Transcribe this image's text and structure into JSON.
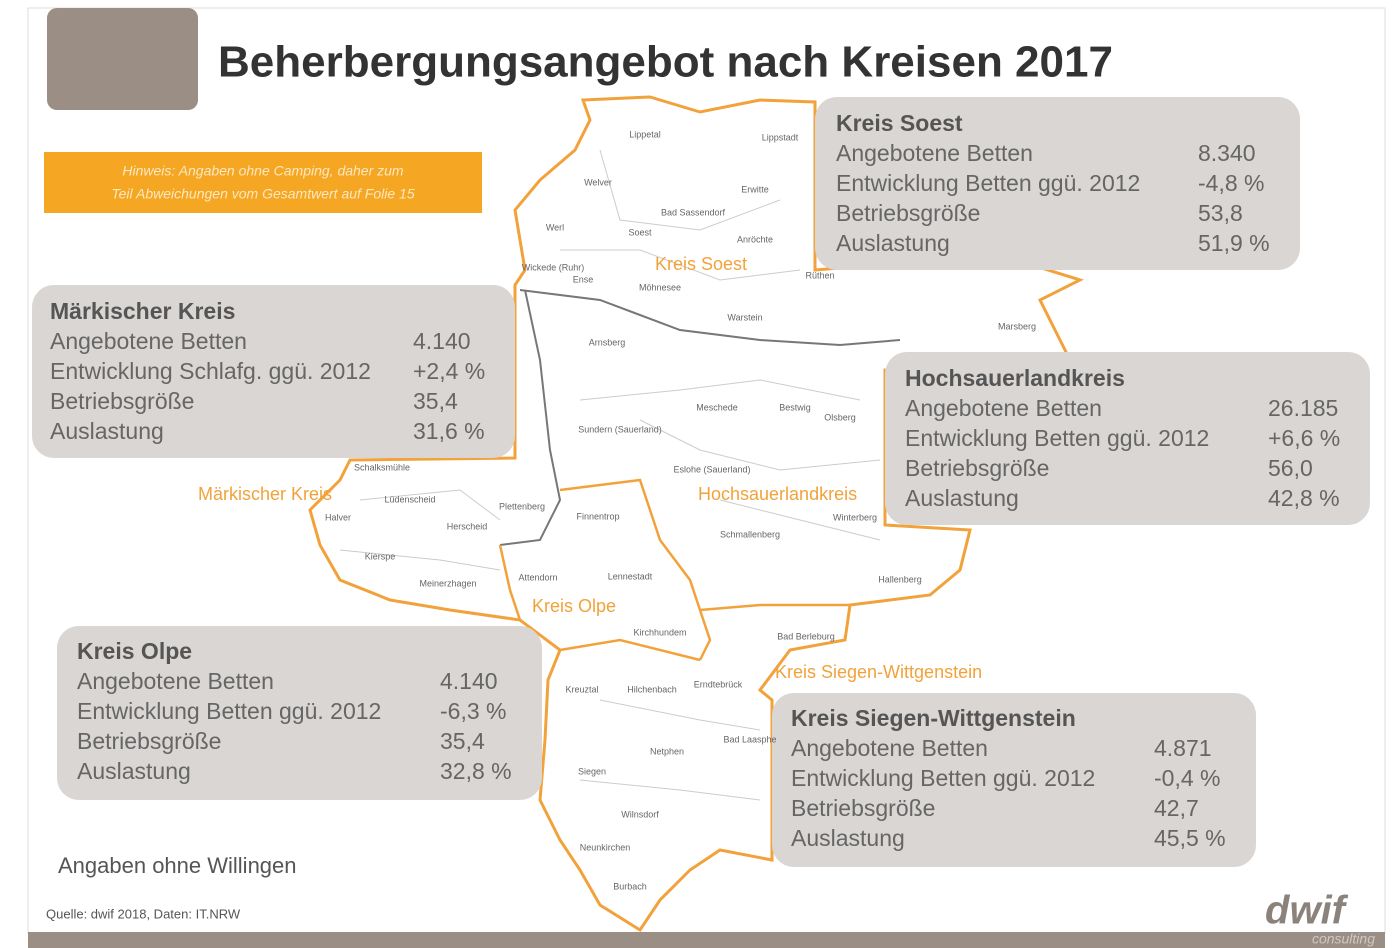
{
  "title": "Beherbergungsangebot nach Kreisen 2017",
  "note": [
    "Hinweis: Angaben ohne Camping, daher zum",
    "Teil Abweichungen vom Gesamtwert auf Folie 15"
  ],
  "boxes": [
    {
      "title": "Kreis Soest",
      "rows": [
        {
          "label": "Angebotene Betten",
          "value": "8.340"
        },
        {
          "label": "Entwicklung Betten ggü. 2012",
          "value": "-4,8 %"
        },
        {
          "label": "Betriebsgröße",
          "value": "53,8"
        },
        {
          "label": "Auslastung",
          "value": "51,9 %"
        }
      ]
    },
    {
      "title": "Märkischer Kreis",
      "rows": [
        {
          "label": "Angebotene Betten",
          "value": "4.140"
        },
        {
          "label": "Entwicklung Schlafg. ggü. 2012",
          "value": "+2,4 %"
        },
        {
          "label": "Betriebsgröße",
          "value": "35,4"
        },
        {
          "label": "Auslastung",
          "value": "31,6 %"
        }
      ]
    },
    {
      "title": "Hochsauerlandkreis",
      "rows": [
        {
          "label": "Angebotene Betten",
          "value": "26.185"
        },
        {
          "label": "Entwicklung Betten ggü. 2012",
          "value": "+6,6 %"
        },
        {
          "label": "Betriebsgröße",
          "value": "56,0"
        },
        {
          "label": "Auslastung",
          "value": "42,8 %"
        }
      ]
    },
    {
      "title": "Kreis Olpe",
      "rows": [
        {
          "label": "Angebotene Betten",
          "value": "4.140"
        },
        {
          "label": "Entwicklung Betten ggü. 2012",
          "value": "-6,3 %"
        },
        {
          "label": "Betriebsgröße",
          "value": "35,4"
        },
        {
          "label": "Auslastung",
          "value": "32,8 %"
        }
      ]
    },
    {
      "title": "Kreis Siegen-Wittgenstein",
      "rows": [
        {
          "label": "Angebotene Betten",
          "value": "4.871"
        },
        {
          "label": "Entwicklung Betten ggü. 2012",
          "value": "-0,4 %"
        },
        {
          "label": "Betriebsgröße",
          "value": "42,7"
        },
        {
          "label": "Auslastung",
          "value": "45,5 %"
        }
      ]
    }
  ],
  "region_labels": [
    "Kreis Soest",
    "Märkischer Kreis",
    "Hochsauerlandkreis",
    "Kreis Olpe",
    "Kreis Siegen-Wittgenstein"
  ],
  "towns": [
    "Lippetal",
    "Lippstadt",
    "Welver",
    "Erwitte",
    "Bad Sassendorf",
    "Werl",
    "Soest",
    "Anröchte",
    "Wickede (Ruhr)",
    "Ense",
    "Möhnesee",
    "Rüthen",
    "Warstein",
    "Arnsberg",
    "Marsberg",
    "Meschede",
    "Bestwig",
    "Olsberg",
    "Sundern (Sauerland)",
    "Eslohe (Sauerland)",
    "Schmallenberg",
    "Winterberg",
    "Hallenberg",
    "Finnentrop",
    "Lennestadt",
    "Attendorn",
    "Kirchhundem",
    "Bad Berleburg",
    "Erndtebrück",
    "Hilchenbach",
    "Kreuztal",
    "Netphen",
    "Siegen",
    "Wilnsdorf",
    "Neunkirchen",
    "Burbach",
    "Bad Laasphe",
    "Schalksmühle",
    "Lüdenscheid",
    "Plettenberg",
    "Herscheid",
    "Halver",
    "Kierspe",
    "Meinerzhagen"
  ],
  "footnote": "Angaben ohne Willingen",
  "source": "Quelle: dwif 2018, Daten: IT.NRW",
  "logo": {
    "name": "dwif",
    "tagline": "consulting"
  }
}
